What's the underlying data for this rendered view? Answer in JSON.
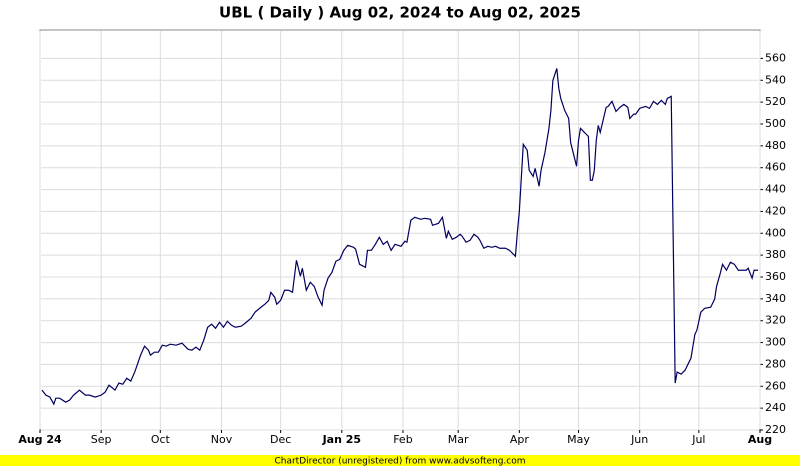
{
  "chart_data": {
    "type": "line",
    "title": "UBL ( Daily ) Aug 02, 2024 to Aug 02, 2025",
    "footer": "ChartDirector (unregistered) from www.advsofteng.com",
    "xlim": [
      0,
      365
    ],
    "ylim": [
      220,
      586
    ],
    "xticks": [
      {
        "value": 0,
        "label": "Aug 24"
      },
      {
        "value": 31,
        "label": "Sep"
      },
      {
        "value": 61,
        "label": "Oct"
      },
      {
        "value": 92,
        "label": "Nov"
      },
      {
        "value": 122,
        "label": "Dec"
      },
      {
        "value": 153,
        "label": "Jan 25"
      },
      {
        "value": 184,
        "label": "Feb"
      },
      {
        "value": 212,
        "label": "Mar"
      },
      {
        "value": 243,
        "label": "Apr"
      },
      {
        "value": 273,
        "label": "May"
      },
      {
        "value": 304,
        "label": "Jun"
      },
      {
        "value": 334,
        "label": "Jul"
      },
      {
        "value": 365,
        "label": "Aug"
      }
    ],
    "yticks": [
      220,
      240,
      260,
      280,
      300,
      320,
      340,
      360,
      380,
      400,
      420,
      440,
      460,
      480,
      500,
      520,
      540,
      560
    ],
    "grid": true,
    "series": [
      {
        "color": "#000060",
        "x": [
          1,
          3,
          5,
          7,
          8,
          10,
          13,
          15,
          17,
          20,
          23,
          25,
          28,
          31,
          33,
          35,
          38,
          40,
          42,
          44,
          46,
          48,
          51,
          53,
          55,
          56,
          58,
          60,
          62,
          64,
          66,
          69,
          72,
          75,
          77,
          79,
          81,
          83,
          85,
          87,
          89,
          91,
          93,
          95,
          97,
          99,
          102,
          104,
          107,
          109,
          112,
          114,
          116,
          117,
          119,
          120,
          122,
          124,
          126,
          128,
          130,
          132,
          133,
          135,
          137,
          139,
          141,
          143,
          144,
          146,
          148,
          150,
          152,
          154,
          156,
          159,
          160,
          162,
          165,
          166,
          168,
          170,
          172,
          174,
          176,
          178,
          180,
          183,
          185,
          186,
          188,
          190,
          193,
          195,
          198,
          199,
          202,
          204,
          206,
          207,
          209,
          211,
          213,
          214,
          216,
          218,
          220,
          222,
          223,
          225,
          227,
          229,
          231,
          233,
          236,
          238,
          241,
          242,
          243,
          245,
          247,
          248,
          250,
          251,
          253,
          254,
          256,
          258,
          259,
          260,
          262,
          263,
          264,
          266,
          268,
          269,
          270,
          272,
          273,
          274,
          276,
          278,
          279,
          280,
          281,
          282,
          283,
          284,
          287,
          288,
          290,
          292,
          294,
          296,
          298,
          299,
          301,
          302,
          304,
          307,
          309,
          311,
          313,
          315,
          317,
          318,
          320,
          322,
          323,
          325,
          327,
          330,
          332,
          333,
          335,
          337,
          340,
          342,
          343,
          345,
          346,
          348,
          350,
          352,
          354,
          356,
          358,
          359,
          361,
          362,
          364
        ],
        "values": [
          256.5,
          251.9,
          250.1,
          243.7,
          249.1,
          249.1,
          245.5,
          247.3,
          251.9,
          256.5,
          251.9,
          251.9,
          250.1,
          251.9,
          254.6,
          261.0,
          256.5,
          262.9,
          261.9,
          267.4,
          264.7,
          272.9,
          288.5,
          296.7,
          293.0,
          288.5,
          291.2,
          291.2,
          297.6,
          296.7,
          298.5,
          297.6,
          299.4,
          293.9,
          293.0,
          295.8,
          293.0,
          302.2,
          314.0,
          316.8,
          313.1,
          318.6,
          314.0,
          319.5,
          315.9,
          314.0,
          315.0,
          317.7,
          322.3,
          327.8,
          332.3,
          335.1,
          338.7,
          346.0,
          341.5,
          335.1,
          338.7,
          347.9,
          347.9,
          346.0,
          375.3,
          360.7,
          368.0,
          347.9,
          355.2,
          351.5,
          341.5,
          334.2,
          347.9,
          358.9,
          364.3,
          374.4,
          376.2,
          384.4,
          389.0,
          387.2,
          385.4,
          371.6,
          368.9,
          384.4,
          384.4,
          389.9,
          396.3,
          389.9,
          392.7,
          384.4,
          389.9,
          388.1,
          392.7,
          391.8,
          411.9,
          414.6,
          412.8,
          413.7,
          412.8,
          407.3,
          409.1,
          414.6,
          395.4,
          401.8,
          394.5,
          396.3,
          399.1,
          397.3,
          391.8,
          393.6,
          399.1,
          396.3,
          393.6,
          386.3,
          388.1,
          387.2,
          388.1,
          386.3,
          386.3,
          384.4,
          379.0,
          400.9,
          420.1,
          481.4,
          475.9,
          457.6,
          452.1,
          459.4,
          443.0,
          457.6,
          474.0,
          496.0,
          512.4,
          539.9,
          550.8,
          532.6,
          523.4,
          512.4,
          505.1,
          483.2,
          475.9,
          461.3,
          485.0,
          496.0,
          492.3,
          488.7,
          448.5,
          448.5,
          457.6,
          485.0,
          498.7,
          492.3,
          515.2,
          516.1,
          520.7,
          511.5,
          515.2,
          517.9,
          515.2,
          505.1,
          509.0,
          509.0,
          514.3,
          516.1,
          514.3,
          520.7,
          517.9,
          521.6,
          517.9,
          523.4,
          525.3,
          262.9,
          273.0,
          271.1,
          274.7,
          285.7,
          307.6,
          311.3,
          327.8,
          331.4,
          332.3,
          339.7,
          351.5,
          364.3,
          371.6,
          366.2,
          373.5,
          371.6,
          366.2,
          366.2,
          366.2,
          368.0,
          358.9,
          366.2,
          366.2
        ]
      }
    ]
  }
}
